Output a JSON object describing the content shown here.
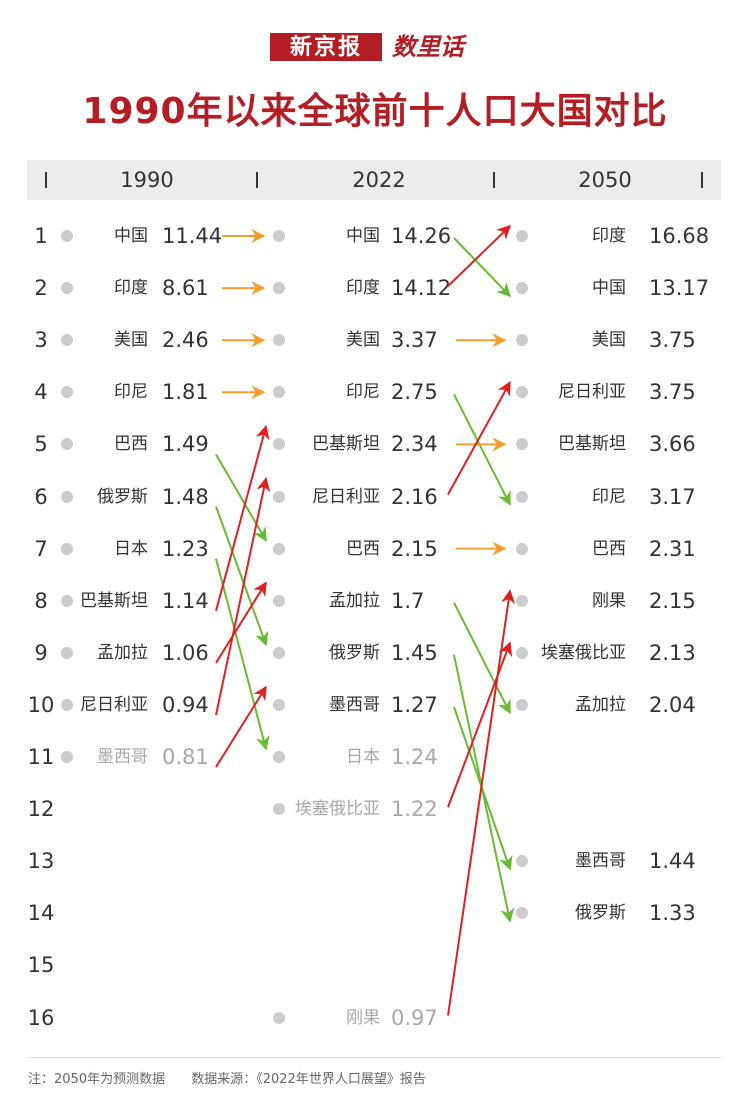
{
  "brand": {
    "name": "新京报",
    "sub": "数里话"
  },
  "title": "1990年以来全球前十人口大国对比",
  "header": {
    "years": [
      "1990",
      "2022",
      "2050"
    ]
  },
  "colors": {
    "brand_red": "#b51d24",
    "arrow_same": "#f0a030",
    "arrow_up": "#e02020",
    "arrow_down": "#66bb33",
    "dot": "#cccccc"
  },
  "ranks": [
    "1",
    "2",
    "3",
    "4",
    "5",
    "6",
    "7",
    "8",
    "9",
    "10",
    "11",
    "12",
    "13",
    "14",
    "15",
    "16"
  ],
  "chart_data": {
    "type": "table",
    "columns": [
      "1990",
      "2022",
      "2050"
    ],
    "col1990": [
      {
        "rank": 1,
        "name": "中国",
        "value": "11.44"
      },
      {
        "rank": 2,
        "name": "印度",
        "value": "8.61"
      },
      {
        "rank": 3,
        "name": "美国",
        "value": "2.46"
      },
      {
        "rank": 4,
        "name": "印尼",
        "value": "1.81"
      },
      {
        "rank": 5,
        "name": "巴西",
        "value": "1.49"
      },
      {
        "rank": 6,
        "name": "俄罗斯",
        "value": "1.48"
      },
      {
        "rank": 7,
        "name": "日本",
        "value": "1.23"
      },
      {
        "rank": 8,
        "name": "巴基斯坦",
        "value": "1.14"
      },
      {
        "rank": 9,
        "name": "孟加拉",
        "value": "1.06"
      },
      {
        "rank": 10,
        "name": "尼日利亚",
        "value": "0.94"
      },
      {
        "rank": 11,
        "name": "墨西哥",
        "value": "0.81",
        "faded": true
      }
    ],
    "col2022": [
      {
        "rank": 1,
        "name": "中国",
        "value": "14.26"
      },
      {
        "rank": 2,
        "name": "印度",
        "value": "14.12"
      },
      {
        "rank": 3,
        "name": "美国",
        "value": "3.37"
      },
      {
        "rank": 4,
        "name": "印尼",
        "value": "2.75"
      },
      {
        "rank": 5,
        "name": "巴基斯坦",
        "value": "2.34"
      },
      {
        "rank": 6,
        "name": "尼日利亚",
        "value": "2.16"
      },
      {
        "rank": 7,
        "name": "巴西",
        "value": "2.15"
      },
      {
        "rank": 8,
        "name": "孟加拉",
        "value": "1.7"
      },
      {
        "rank": 9,
        "name": "俄罗斯",
        "value": "1.45"
      },
      {
        "rank": 10,
        "name": "墨西哥",
        "value": "1.27"
      },
      {
        "rank": 11,
        "name": "日本",
        "value": "1.24",
        "faded": true
      },
      {
        "rank": 12,
        "name": "埃塞俄比亚",
        "value": "1.22",
        "faded": true
      },
      {
        "rank": 16,
        "name": "刚果",
        "value": "0.97",
        "faded": true
      }
    ],
    "col2050": [
      {
        "rank": 1,
        "name": "印度",
        "value": "16.68"
      },
      {
        "rank": 2,
        "name": "中国",
        "value": "13.17"
      },
      {
        "rank": 3,
        "name": "美国",
        "value": "3.75"
      },
      {
        "rank": 4,
        "name": "尼日利亚",
        "value": "3.75"
      },
      {
        "rank": 5,
        "name": "巴基斯坦",
        "value": "3.66"
      },
      {
        "rank": 6,
        "name": "印尼",
        "value": "3.17"
      },
      {
        "rank": 7,
        "name": "巴西",
        "value": "2.31"
      },
      {
        "rank": 8,
        "name": "刚果",
        "value": "2.15"
      },
      {
        "rank": 9,
        "name": "埃塞俄比亚",
        "value": "2.13"
      },
      {
        "rank": 10,
        "name": "孟加拉",
        "value": "2.04"
      },
      {
        "rank": 13,
        "name": "墨西哥",
        "value": "1.44"
      },
      {
        "rank": 14,
        "name": "俄罗斯",
        "value": "1.33"
      }
    ]
  },
  "footer": {
    "note": "注：2050年为预测数据",
    "source": "数据来源：《2022年世界人口展望》报告"
  }
}
